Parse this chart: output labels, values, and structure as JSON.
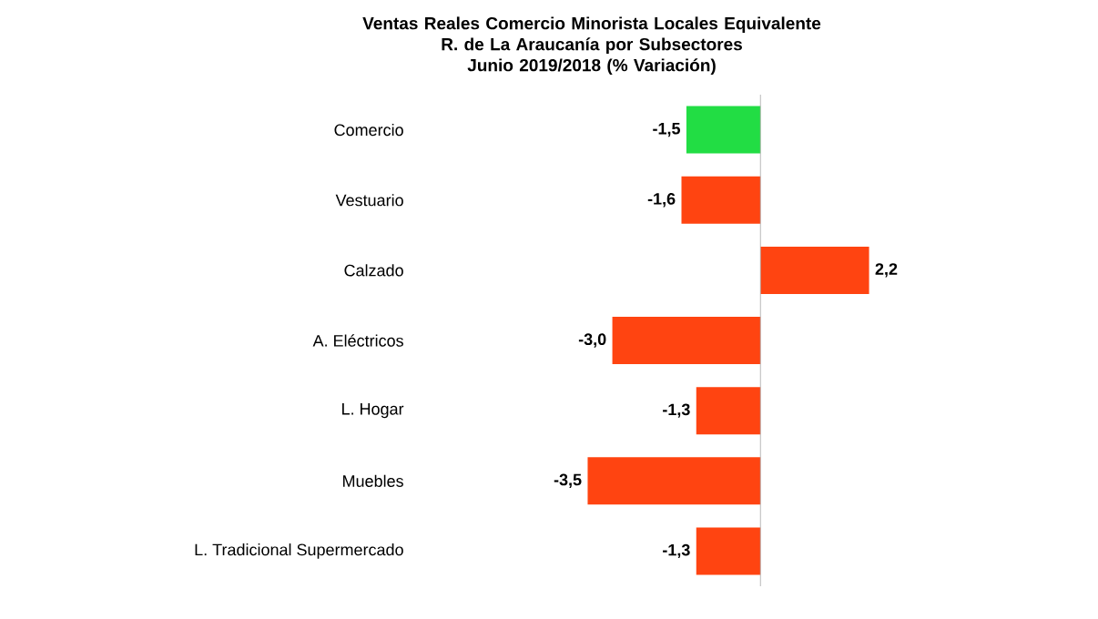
{
  "chart_data": {
    "type": "bar",
    "orientation": "horizontal",
    "title": "Ventas Reales Comercio Minorista Locales Equivalente\nR. de La Araucanía por Subsectores\nJunio  2019/2018 (% Variación)",
    "categories": [
      "Comercio",
      "Vestuario",
      "Calzado",
      "A. Eléctricos",
      "L. Hogar",
      "Muebles",
      "L. Tradicional Supermercado"
    ],
    "values": [
      -1.5,
      -1.6,
      2.2,
      -3.0,
      -1.3,
      -3.5,
      -1.3
    ],
    "value_labels": [
      "-1,5",
      "-1,6",
      "2,2",
      "-3,0",
      "-1,3",
      "-3,5",
      "-1,3"
    ],
    "colors": [
      "#22dd44",
      "#ff4411",
      "#ff4411",
      "#ff4411",
      "#ff4411",
      "#ff4411",
      "#ff4411"
    ],
    "data_labels": true
  }
}
